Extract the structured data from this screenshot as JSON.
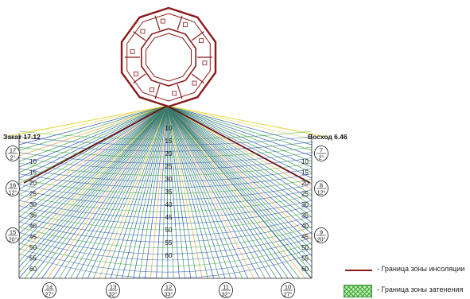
{
  "labels": {
    "sunset": "Закат 17.12",
    "sunrise": "Восход 6.46"
  },
  "scale_left": [
    "10",
    "15",
    "20",
    "25",
    "30",
    "35",
    "40",
    "45",
    "50",
    "55",
    "60"
  ],
  "scale_center": [
    "10",
    "15",
    "20",
    "25",
    "30",
    "35",
    "40",
    "45",
    "50",
    "55",
    "60"
  ],
  "scale_right": [
    "10",
    "15",
    "20",
    "25",
    "30",
    "35",
    "40",
    "45",
    "50",
    "55",
    "60"
  ],
  "hour_markers_left": [
    {
      "hour": "17",
      "min": "2°"
    },
    {
      "hour": "16",
      "min": "12°"
    },
    {
      "hour": "15",
      "min": "20°"
    }
  ],
  "hour_markers_right": [
    {
      "hour": "7",
      "min": "2°"
    },
    {
      "hour": "8",
      "min": "12°"
    },
    {
      "hour": "9",
      "min": "20°"
    }
  ],
  "hour_markers_bottom": [
    {
      "hour": "14",
      "min": "27°"
    },
    {
      "hour": "13",
      "min": "32°"
    },
    {
      "hour": "12",
      "min": "33°"
    },
    {
      "hour": "11",
      "min": "32°"
    },
    {
      "hour": "10",
      "min": "27°"
    }
  ],
  "legend": {
    "insolation": "- Граница зоны инсоляции",
    "shading": "- Граница зоны затенения"
  },
  "colors": {
    "building": "#8b1a1a",
    "ray_blue": "#1f4fa8",
    "ray_green": "#2e9e3a",
    "ray_orange": "#f0a030",
    "ray_yellow": "#e8d84a",
    "boundary": "#6b0f0f"
  }
}
